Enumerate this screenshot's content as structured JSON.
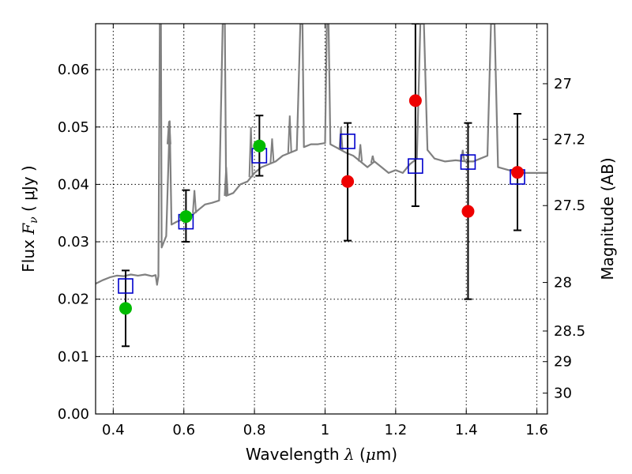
{
  "chart_data": {
    "type": "scatter",
    "title": "",
    "xlabel": {
      "prefix": "Wavelength",
      "symbol": "λ",
      "unit_open": " (",
      "unit_mu": "μ",
      "unit_rest": "m)"
    },
    "ylabel": {
      "prefix": "Flux",
      "symbol": "F",
      "subscript": "ν",
      "unit": "( μJy )"
    },
    "y2label": "Magnitude (AB)",
    "xlim": [
      0.35,
      1.63
    ],
    "ylim": [
      0.0,
      0.068
    ],
    "x_ticks": [
      {
        "v": 0.4,
        "label": "0.4"
      },
      {
        "v": 0.6,
        "label": "0.6"
      },
      {
        "v": 0.8,
        "label": "0.8"
      },
      {
        "v": 1.0,
        "label": "1"
      },
      {
        "v": 1.2,
        "label": "1.2"
      },
      {
        "v": 1.4,
        "label": "1.4"
      },
      {
        "v": 1.6,
        "label": "1.6"
      }
    ],
    "y_ticks": [
      {
        "v": 0.0,
        "label": "0.00"
      },
      {
        "v": 0.01,
        "label": "0.01"
      },
      {
        "v": 0.02,
        "label": "0.02"
      },
      {
        "v": 0.03,
        "label": "0.03"
      },
      {
        "v": 0.04,
        "label": "0.04"
      },
      {
        "v": 0.05,
        "label": "0.05"
      },
      {
        "v": 0.06,
        "label": "0.06"
      }
    ],
    "y2_ticks": [
      {
        "mag": 27,
        "label": "27"
      },
      {
        "mag": 27.2,
        "label": "27.2"
      },
      {
        "mag": 27.5,
        "label": "27.5"
      },
      {
        "mag": 28,
        "label": "28"
      },
      {
        "mag": 28.5,
        "label": "28.5"
      },
      {
        "mag": 29,
        "label": "29"
      },
      {
        "mag": 30,
        "label": "30"
      }
    ],
    "grid": true,
    "colors": {
      "template": "#808080",
      "model": "#0000cc",
      "detection": "#00bb00",
      "upper": "#ee0000",
      "errorbar": "#000000"
    },
    "template_spectrum": [
      [
        0.35,
        0.0227
      ],
      [
        0.37,
        0.0233
      ],
      [
        0.39,
        0.0238
      ],
      [
        0.41,
        0.0241
      ],
      [
        0.43,
        0.024
      ],
      [
        0.45,
        0.0243
      ],
      [
        0.47,
        0.0241
      ],
      [
        0.49,
        0.0243
      ],
      [
        0.51,
        0.024
      ],
      [
        0.52,
        0.0242
      ],
      [
        0.524,
        0.0225
      ],
      [
        0.528,
        0.024
      ],
      [
        0.532,
        0.068
      ],
      [
        0.535,
        0.068
      ],
      [
        0.537,
        0.029
      ],
      [
        0.55,
        0.031
      ],
      [
        0.56,
        0.051
      ],
      [
        0.565,
        0.033
      ],
      [
        0.58,
        0.0335
      ],
      [
        0.6,
        0.034
      ],
      [
        0.62,
        0.0345
      ],
      [
        0.64,
        0.0355
      ],
      [
        0.66,
        0.0365
      ],
      [
        0.68,
        0.0368
      ],
      [
        0.7,
        0.0372
      ],
      [
        0.71,
        0.068
      ],
      [
        0.716,
        0.068
      ],
      [
        0.72,
        0.038
      ],
      [
        0.74,
        0.0385
      ],
      [
        0.76,
        0.04
      ],
      [
        0.78,
        0.0405
      ],
      [
        0.8,
        0.042
      ],
      [
        0.82,
        0.043
      ],
      [
        0.84,
        0.0435
      ],
      [
        0.86,
        0.044
      ],
      [
        0.88,
        0.045
      ],
      [
        0.9,
        0.0455
      ],
      [
        0.92,
        0.046
      ],
      [
        0.93,
        0.068
      ],
      [
        0.936,
        0.068
      ],
      [
        0.94,
        0.0465
      ],
      [
        0.96,
        0.047
      ],
      [
        0.98,
        0.047
      ],
      [
        1.0,
        0.0472
      ],
      [
        1.005,
        0.068
      ],
      [
        1.01,
        0.068
      ],
      [
        1.015,
        0.047
      ],
      [
        1.03,
        0.0465
      ],
      [
        1.06,
        0.0455
      ],
      [
        1.08,
        0.045
      ],
      [
        1.1,
        0.044
      ],
      [
        1.12,
        0.043
      ],
      [
        1.14,
        0.044
      ],
      [
        1.16,
        0.043
      ],
      [
        1.18,
        0.042
      ],
      [
        1.2,
        0.0425
      ],
      [
        1.22,
        0.042
      ],
      [
        1.24,
        0.0435
      ],
      [
        1.25,
        0.044
      ],
      [
        1.26,
        0.0445
      ],
      [
        1.27,
        0.068
      ],
      [
        1.28,
        0.068
      ],
      [
        1.29,
        0.046
      ],
      [
        1.31,
        0.0445
      ],
      [
        1.34,
        0.044
      ],
      [
        1.37,
        0.0442
      ],
      [
        1.4,
        0.044
      ],
      [
        1.42,
        0.044
      ],
      [
        1.44,
        0.0445
      ],
      [
        1.46,
        0.045
      ],
      [
        1.47,
        0.068
      ],
      [
        1.48,
        0.068
      ],
      [
        1.49,
        0.043
      ],
      [
        1.52,
        0.0425
      ],
      [
        1.55,
        0.042
      ],
      [
        1.58,
        0.042
      ],
      [
        1.63,
        0.042
      ]
    ],
    "emission_lines": [
      [
        0.558,
        0.051
      ],
      [
        0.63,
        0.039
      ],
      [
        0.72,
        0.043
      ],
      [
        0.79,
        0.05
      ],
      [
        0.85,
        0.048
      ],
      [
        0.9,
        0.052
      ],
      [
        1.045,
        0.05
      ],
      [
        1.1,
        0.047
      ],
      [
        1.135,
        0.045
      ],
      [
        1.39,
        0.046
      ]
    ],
    "model_points": [
      {
        "x": 0.435,
        "y": 0.0223
      },
      {
        "x": 0.606,
        "y": 0.0335
      },
      {
        "x": 0.814,
        "y": 0.045
      },
      {
        "x": 1.064,
        "y": 0.0475
      },
      {
        "x": 1.256,
        "y": 0.0432
      },
      {
        "x": 1.405,
        "y": 0.0439
      },
      {
        "x": 1.545,
        "y": 0.0413
      }
    ],
    "detections": [
      {
        "x": 0.435,
        "y": 0.0184,
        "yerr_low": 0.0118,
        "yerr_high": 0.025
      },
      {
        "x": 0.606,
        "y": 0.0344,
        "yerr_low": 0.03,
        "yerr_high": 0.039
      },
      {
        "x": 0.814,
        "y": 0.0467,
        "yerr_low": 0.0415,
        "yerr_high": 0.052
      }
    ],
    "upper_limits": [
      {
        "x": 1.064,
        "y": 0.0405,
        "yerr_low": 0.0302,
        "yerr_high": 0.0507
      },
      {
        "x": 1.256,
        "y": 0.0546,
        "yerr_low": 0.0362,
        "yerr_high": 0.068
      },
      {
        "x": 1.405,
        "y": 0.0353,
        "yerr_low": 0.02,
        "yerr_high": 0.0507
      },
      {
        "x": 1.545,
        "y": 0.0421,
        "yerr_low": 0.032,
        "yerr_high": 0.0523
      }
    ]
  }
}
